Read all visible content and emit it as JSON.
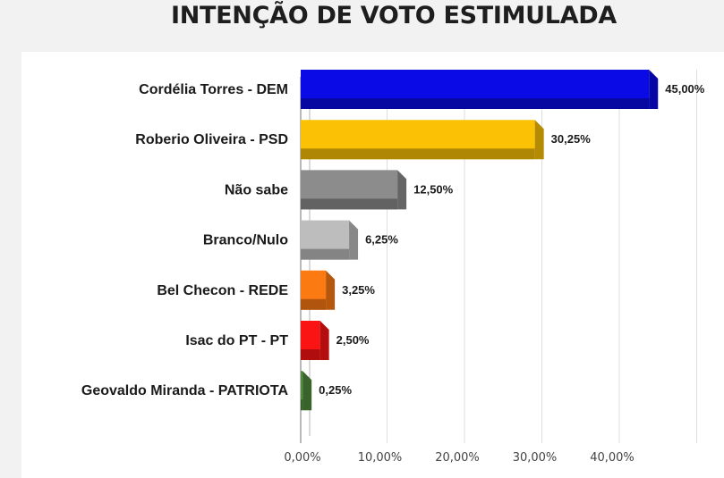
{
  "title": "INTENÇÃO DE VOTO ESTIMULADA",
  "chart_data": {
    "type": "bar",
    "orientation": "horizontal",
    "title": "INTENÇÃO DE VOTO ESTIMULADA",
    "categories": [
      "Cordélia Torres - DEM",
      "Roberio Oliveira - PSD",
      "Não sabe",
      "Branco/Nulo",
      "Bel Checon - REDE",
      "Isac do PT - PT",
      "Geovaldo Miranda - PATRIOTA"
    ],
    "values": [
      45.0,
      30.25,
      12.5,
      6.25,
      3.25,
      2.5,
      0.25
    ],
    "value_labels": [
      "45,00%",
      "30,25%",
      "12,50%",
      "6,25%",
      "3,25%",
      "2,50%",
      "0,25%"
    ],
    "colors": [
      "#0a0ae6",
      "#fbc105",
      "#8c8c8c",
      "#bdbdbd",
      "#fb7a12",
      "#fb1414",
      "#4e8a3a"
    ],
    "xticks": [
      0,
      10,
      20,
      30,
      40
    ],
    "xtick_labels": [
      "0,00%",
      "10,00%",
      "20,00%",
      "30,00%",
      "40,00%"
    ],
    "xlim": [
      0,
      50
    ],
    "grid": true,
    "legend": "none",
    "bar_style": "3d"
  }
}
